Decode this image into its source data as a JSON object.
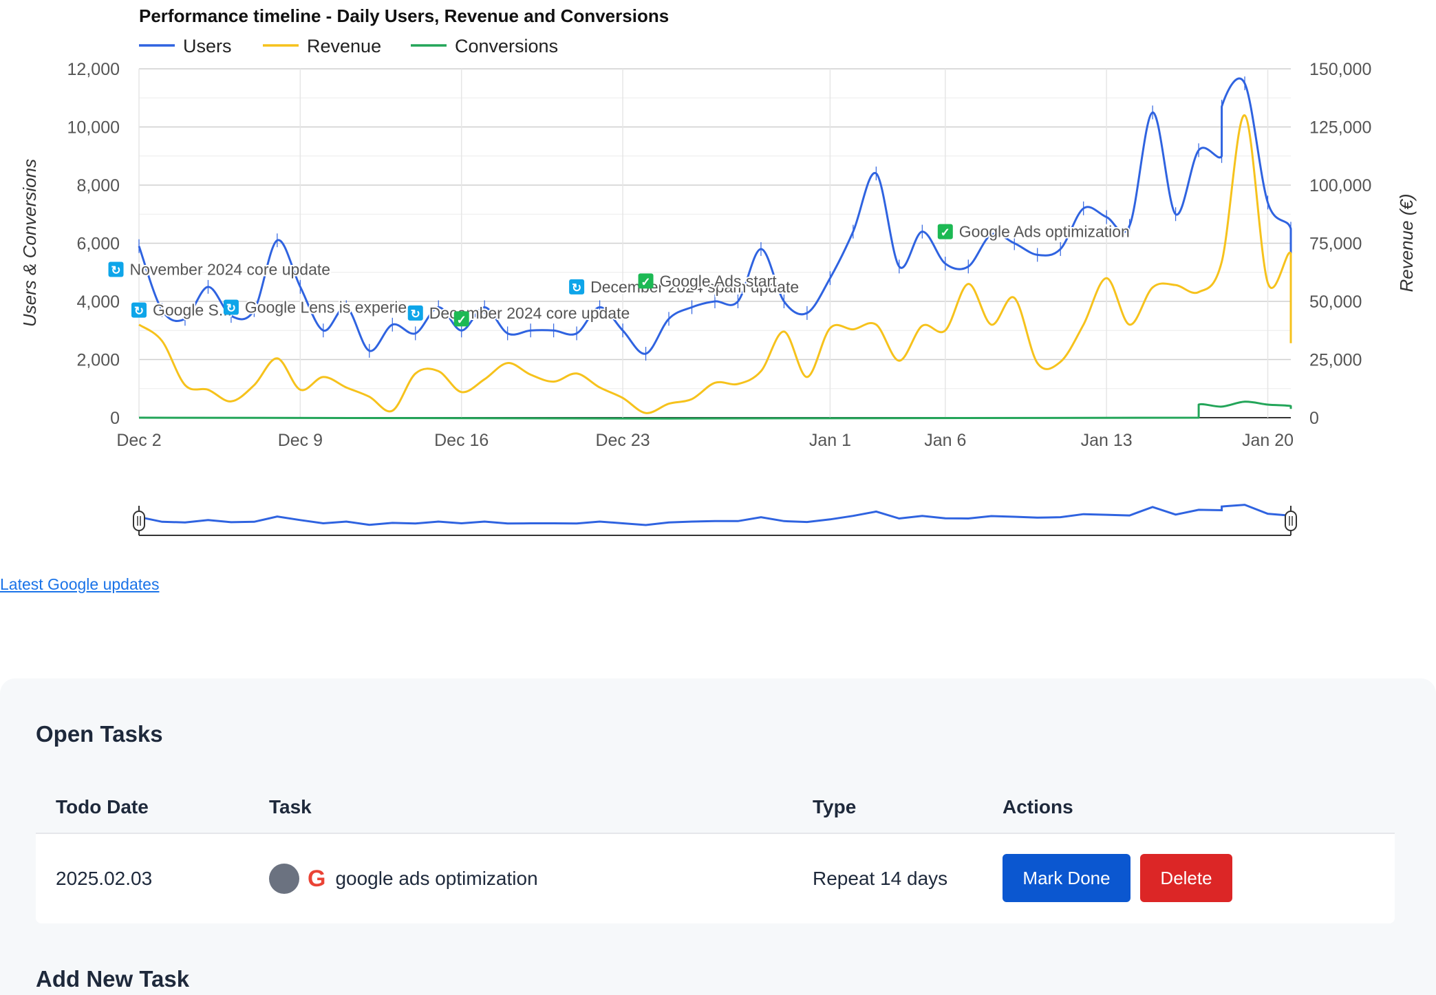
{
  "chart_data": {
    "type": "line",
    "title": "Performance timeline - Daily Users, Revenue and Conversions",
    "y_left_label": "Users & Conversions",
    "y_right_label": "Revenue (€)",
    "y_left_ticks": [
      "0",
      "2,000",
      "4,000",
      "6,000",
      "8,000",
      "10,000",
      "12,000"
    ],
    "y_right_ticks": [
      "0",
      "25,000",
      "50,000",
      "75,000",
      "100,000",
      "125,000",
      "150,000"
    ],
    "y_left_range": [
      0,
      12000
    ],
    "y_right_range": [
      0,
      150000
    ],
    "x_range": [
      "2024-12-02",
      "2025-01-21"
    ],
    "x_ticks": [
      {
        "date": "2024-12-02",
        "label": "Dec 2"
      },
      {
        "date": "2024-12-09",
        "label": "Dec 9"
      },
      {
        "date": "2024-12-16",
        "label": "Dec 16"
      },
      {
        "date": "2024-12-23",
        "label": "Dec 23"
      },
      {
        "date": "2025-01-01",
        "label": "Jan 1"
      },
      {
        "date": "2025-01-06",
        "label": "Jan 6"
      },
      {
        "date": "2025-01-13",
        "label": "Jan 13"
      },
      {
        "date": "2025-01-20",
        "label": "Jan 20"
      }
    ],
    "legend_position": "top-left",
    "grid": true,
    "series": [
      {
        "name": "Users",
        "axis": "left",
        "color": "#2f63e0",
        "points": [
          [
            "2024-12-02",
            5900
          ],
          [
            "2024-12-03",
            3700
          ],
          [
            "2024-12-04",
            3400
          ],
          [
            "2024-12-05",
            4500
          ],
          [
            "2024-12-06",
            3500
          ],
          [
            "2024-12-07",
            3700
          ],
          [
            "2024-12-08",
            6100
          ],
          [
            "2024-12-09",
            4500
          ],
          [
            "2024-12-10",
            3000
          ],
          [
            "2024-12-11",
            3800
          ],
          [
            "2024-12-12",
            2300
          ],
          [
            "2024-12-13",
            3200
          ],
          [
            "2024-12-14",
            2900
          ],
          [
            "2024-12-15",
            3800
          ],
          [
            "2024-12-16",
            3000
          ],
          [
            "2024-12-17",
            3800
          ],
          [
            "2024-12-18",
            2900
          ],
          [
            "2024-12-19",
            3000
          ],
          [
            "2024-12-20",
            3000
          ],
          [
            "2024-12-21",
            2900
          ],
          [
            "2024-12-22",
            3800
          ],
          [
            "2024-12-23",
            3000
          ],
          [
            "2024-12-24",
            2200
          ],
          [
            "2024-12-25",
            3400
          ],
          [
            "2024-12-26",
            3800
          ],
          [
            "2024-12-27",
            4000
          ],
          [
            "2024-12-28",
            4000
          ],
          [
            "2024-12-29",
            5800
          ],
          [
            "2024-12-30",
            4000
          ],
          [
            "2024-12-31",
            3600
          ],
          [
            "2025-01-01",
            4800
          ],
          [
            "2025-01-02",
            6400
          ],
          [
            "2025-01-03",
            8400
          ],
          [
            "2025-01-04",
            5200
          ],
          [
            "2025-01-05",
            6400
          ],
          [
            "2025-01-06",
            5300
          ],
          [
            "2025-01-07",
            5200
          ],
          [
            "2025-01-08",
            6300
          ],
          [
            "2025-01-09",
            6000
          ],
          [
            "2025-01-10",
            5600
          ],
          [
            "2025-01-11",
            5800
          ],
          [
            "2025-01-12",
            7200
          ],
          [
            "2025-01-13",
            6900
          ],
          [
            "2025-01-14",
            6600
          ],
          [
            "2025-01-15",
            10500
          ],
          [
            "2025-01-16",
            7000
          ],
          [
            "2025-01-17",
            9200
          ],
          [
            "2025-01-18",
            9000
          ],
          [
            "2025-01-18",
            10700
          ],
          [
            "2025-01-19",
            11500
          ],
          [
            "2025-01-20",
            7400
          ],
          [
            "2025-01-21",
            6500
          ],
          [
            "2025-01-22",
            4800
          ]
        ]
      },
      {
        "name": "Revenue",
        "axis": "right",
        "color": "#f6c21c",
        "points": [
          [
            "2024-12-02",
            40000
          ],
          [
            "2024-12-03",
            33000
          ],
          [
            "2024-12-04",
            14000
          ],
          [
            "2024-12-05",
            12000
          ],
          [
            "2024-12-06",
            7000
          ],
          [
            "2024-12-07",
            14000
          ],
          [
            "2024-12-08",
            25500
          ],
          [
            "2024-12-09",
            12000
          ],
          [
            "2024-12-10",
            17500
          ],
          [
            "2024-12-11",
            13000
          ],
          [
            "2024-12-12",
            9000
          ],
          [
            "2024-12-13",
            3000
          ],
          [
            "2024-12-14",
            19000
          ],
          [
            "2024-12-15",
            20000
          ],
          [
            "2024-12-16",
            11000
          ],
          [
            "2024-12-17",
            16500
          ],
          [
            "2024-12-18",
            23500
          ],
          [
            "2024-12-19",
            18500
          ],
          [
            "2024-12-20",
            15500
          ],
          [
            "2024-12-21",
            19000
          ],
          [
            "2024-12-22",
            13000
          ],
          [
            "2024-12-23",
            8500
          ],
          [
            "2024-12-24",
            2000
          ],
          [
            "2024-12-25",
            6000
          ],
          [
            "2024-12-26",
            8000
          ],
          [
            "2024-12-27",
            15000
          ],
          [
            "2024-12-28",
            14500
          ],
          [
            "2024-12-29",
            20000
          ],
          [
            "2024-12-30",
            37000
          ],
          [
            "2024-12-31",
            17500
          ],
          [
            "2025-01-01",
            38500
          ],
          [
            "2025-01-02",
            38000
          ],
          [
            "2025-01-03",
            40000
          ],
          [
            "2025-01-04",
            24500
          ],
          [
            "2025-01-05",
            39500
          ],
          [
            "2025-01-06",
            37500
          ],
          [
            "2025-01-07",
            57500
          ],
          [
            "2025-01-08",
            40000
          ],
          [
            "2025-01-09",
            51500
          ],
          [
            "2025-01-10",
            23500
          ],
          [
            "2025-01-11",
            24000
          ],
          [
            "2025-01-12",
            40000
          ],
          [
            "2025-01-13",
            60000
          ],
          [
            "2025-01-14",
            40000
          ],
          [
            "2025-01-15",
            56000
          ],
          [
            "2025-01-16",
            57000
          ],
          [
            "2025-01-17",
            54000
          ],
          [
            "2025-01-18",
            67000
          ],
          [
            "2025-01-19",
            130000
          ],
          [
            "2025-01-20",
            58000
          ],
          [
            "2025-01-21",
            70500
          ],
          [
            "2025-01-22",
            32000
          ]
        ]
      },
      {
        "name": "Conversions",
        "axis": "left",
        "color": "#23a559",
        "points": [
          [
            "2024-12-02",
            0
          ],
          [
            "2025-01-17",
            0
          ],
          [
            "2025-01-17",
            450
          ],
          [
            "2025-01-18",
            380
          ],
          [
            "2025-01-19",
            550
          ],
          [
            "2025-01-20",
            450
          ],
          [
            "2025-01-21",
            400
          ],
          [
            "2025-01-22",
            300
          ]
        ]
      }
    ],
    "annotations": [
      {
        "date": "2024-12-01",
        "value": 5100,
        "icon": "update",
        "label": "November 2024 core update"
      },
      {
        "date": "2024-12-02",
        "value": 3700,
        "icon": "update",
        "label": "Google S..."
      },
      {
        "date": "2024-12-06",
        "value": 3800,
        "icon": "update",
        "label": "Google Lens is experie..."
      },
      {
        "date": "2024-12-14",
        "value": 3600,
        "icon": "update",
        "label": "December 2024 core update"
      },
      {
        "date": "2024-12-16",
        "value": 3400,
        "icon": "check",
        "label": ""
      },
      {
        "date": "2024-12-21",
        "value": 4500,
        "icon": "update",
        "label": "December 2024 spam update"
      },
      {
        "date": "2024-12-24",
        "value": 4700,
        "icon": "check",
        "label": "Google Ads start"
      },
      {
        "date": "2025-01-06",
        "value": 6400,
        "icon": "check",
        "label": "Google Ads optimization"
      }
    ]
  },
  "links": {
    "latest_updates": "Latest Google updates"
  },
  "tasks": {
    "title": "Open Tasks",
    "headers": {
      "date": "Todo Date",
      "task": "Task",
      "type": "Type",
      "actions": "Actions"
    },
    "rows": [
      {
        "date": "2025.02.03",
        "task": "google ads optimization",
        "type": "Repeat 14 days",
        "mark_done": "Mark Done",
        "delete": "Delete"
      }
    ]
  },
  "next_section_title": "Add New Task"
}
